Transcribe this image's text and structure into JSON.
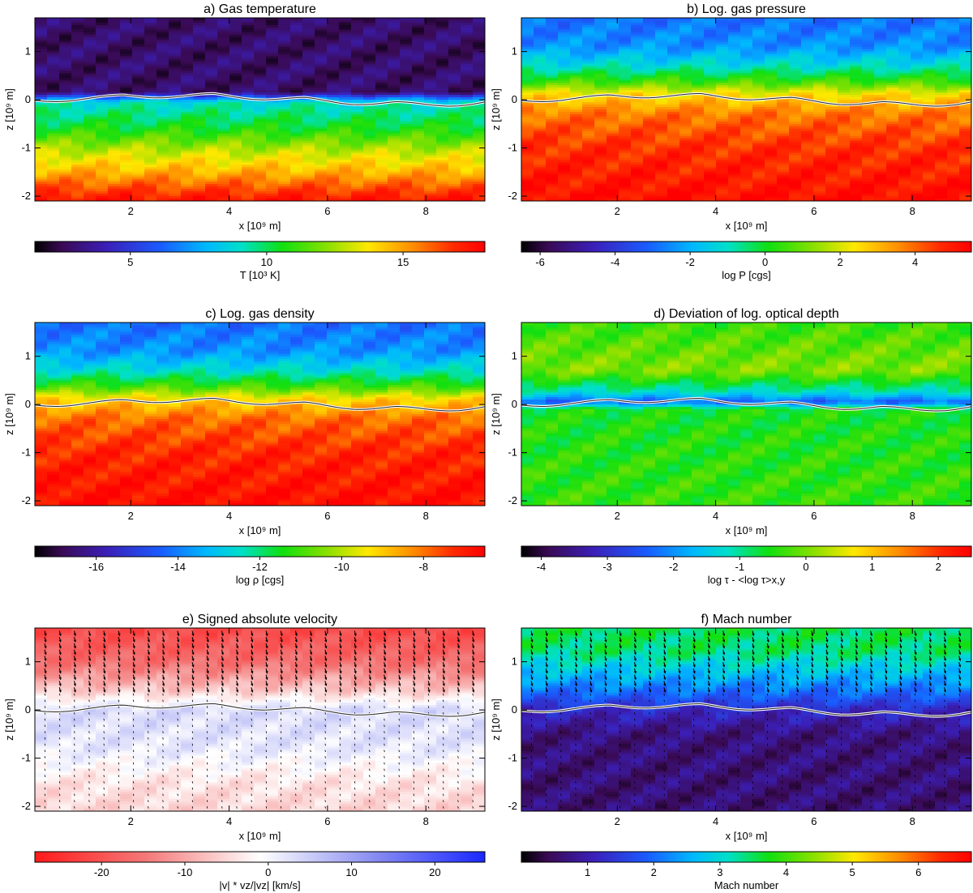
{
  "chart_data": [
    {
      "type": "heatmap",
      "title": "a) Gas temperature",
      "xlabel": "x [10⁹ m]",
      "ylabel": "z [10⁹ m]",
      "xlim": [
        0.05,
        9.2
      ],
      "ylim": [
        -2.1,
        1.7
      ],
      "xticks": [
        "2",
        "4",
        "6",
        "8"
      ],
      "xtick_values": [
        2,
        4,
        6,
        8
      ],
      "yticks": [
        "1",
        "0",
        "-1",
        "-2"
      ],
      "ytick_values": [
        1,
        0,
        -1,
        -2
      ],
      "colorbar": {
        "label": "T [10³ K]",
        "range": [
          1.5,
          18
        ],
        "ticks": [
          "5",
          "10",
          "15"
        ],
        "tick_values": [
          5,
          10,
          15
        ],
        "colormap": "rainbow-dark"
      },
      "field": {
        "kind": "layered",
        "surface_value": 0.0,
        "layers": [
          {
            "z": 1.7,
            "value": 0.08
          },
          {
            "z": 0.15,
            "value": 0.08
          },
          {
            "z": 0.05,
            "value": 0.28
          },
          {
            "z": -0.05,
            "value": 0.45
          },
          {
            "z": -0.6,
            "value": 0.55
          },
          {
            "z": -1.1,
            "value": 0.7
          },
          {
            "z": -1.5,
            "value": 0.8
          },
          {
            "z": -1.9,
            "value": 0.92
          },
          {
            "z": -2.1,
            "value": 0.97
          }
        ]
      },
      "tau_contour": true,
      "vectors": false
    },
    {
      "type": "heatmap",
      "title": "b) Log. gas pressure",
      "xlabel": "x [10⁹ m]",
      "ylabel": "z [10⁹ m]",
      "xlim": [
        0.05,
        9.2
      ],
      "ylim": [
        -2.1,
        1.7
      ],
      "xticks": [
        "2",
        "4",
        "6",
        "8"
      ],
      "xtick_values": [
        2,
        4,
        6,
        8
      ],
      "yticks": [
        "1",
        "0",
        "-1",
        "-2"
      ],
      "ytick_values": [
        1,
        0,
        -1,
        -2
      ],
      "colorbar": {
        "label": "log P [cgs]",
        "range": [
          -6.5,
          5.5
        ],
        "ticks": [
          "-6",
          "-4",
          "-2",
          "0",
          "2",
          "4"
        ],
        "tick_values": [
          -6,
          -4,
          -2,
          0,
          2,
          4
        ],
        "colormap": "rainbow-dark"
      },
      "field": {
        "kind": "layered",
        "layers": [
          {
            "z": 1.7,
            "value": 0.3
          },
          {
            "z": 1.1,
            "value": 0.34
          },
          {
            "z": 0.7,
            "value": 0.45
          },
          {
            "z": 0.35,
            "value": 0.6
          },
          {
            "z": 0.1,
            "value": 0.75
          },
          {
            "z": -0.3,
            "value": 0.86
          },
          {
            "z": -1.0,
            "value": 0.93
          },
          {
            "z": -2.1,
            "value": 0.98
          }
        ]
      },
      "tau_contour": true,
      "vectors": false
    },
    {
      "type": "heatmap",
      "title": "c) Log. gas density",
      "xlabel": "x [10⁹ m]",
      "ylabel": "z [10⁹ m]",
      "xlim": [
        0.05,
        9.2
      ],
      "ylim": [
        -2.1,
        1.7
      ],
      "xticks": [
        "2",
        "4",
        "6",
        "8"
      ],
      "xtick_values": [
        2,
        4,
        6,
        8
      ],
      "yticks": [
        "1",
        "0",
        "-1",
        "-2"
      ],
      "ytick_values": [
        1,
        0,
        -1,
        -2
      ],
      "colorbar": {
        "label": "log ρ [cgs]",
        "range": [
          -17.5,
          -6.5
        ],
        "ticks": [
          "-16",
          "-14",
          "-12",
          "-10",
          "-8"
        ],
        "tick_values": [
          -16,
          -14,
          -12,
          -10,
          -8
        ],
        "colormap": "rainbow-dark"
      },
      "field": {
        "kind": "layered",
        "layers": [
          {
            "z": 1.7,
            "value": 0.3
          },
          {
            "z": 1.1,
            "value": 0.34
          },
          {
            "z": 0.7,
            "value": 0.45
          },
          {
            "z": 0.35,
            "value": 0.6
          },
          {
            "z": 0.1,
            "value": 0.76
          },
          {
            "z": -0.3,
            "value": 0.87
          },
          {
            "z": -1.0,
            "value": 0.94
          },
          {
            "z": -2.1,
            "value": 0.98
          }
        ]
      },
      "tau_contour": true,
      "vectors": false
    },
    {
      "type": "heatmap",
      "title": "d) Deviation of log. optical depth",
      "xlabel": "x [10⁹ m]",
      "ylabel": "z [10⁹ m]",
      "xlim": [
        0.05,
        9.2
      ],
      "ylim": [
        -2.1,
        1.7
      ],
      "xticks": [
        "2",
        "4",
        "6",
        "8"
      ],
      "xtick_values": [
        2,
        4,
        6,
        8
      ],
      "yticks": [
        "1",
        "0",
        "-1",
        "-2"
      ],
      "ytick_values": [
        1,
        0,
        -1,
        -2
      ],
      "colorbar": {
        "label": "log τ - <log τ>x,y",
        "range": [
          -4.3,
          2.5
        ],
        "ticks": [
          "-4",
          "-3",
          "-2",
          "-1",
          "0",
          "1",
          "2"
        ],
        "tick_values": [
          -4,
          -3,
          -2,
          -1,
          0,
          1,
          2
        ],
        "colormap": "rainbow-dark"
      },
      "field": {
        "kind": "layered",
        "layers": [
          {
            "z": 1.7,
            "value": 0.58
          },
          {
            "z": 0.7,
            "value": 0.64
          },
          {
            "z": 0.25,
            "value": 0.45
          },
          {
            "z": 0.05,
            "value": 0.28
          },
          {
            "z": -0.1,
            "value": 0.55
          },
          {
            "z": -2.1,
            "value": 0.58
          }
        ]
      },
      "tau_contour": true,
      "vectors": false
    },
    {
      "type": "heatmap",
      "title": "e) Signed absolute velocity",
      "xlabel": "x [10⁹ m]",
      "ylabel": "z [10⁹ m]",
      "xlim": [
        0.05,
        9.2
      ],
      "ylim": [
        -2.1,
        1.7
      ],
      "xticks": [
        "2",
        "4",
        "6",
        "8"
      ],
      "xtick_values": [
        2,
        4,
        6,
        8
      ],
      "yticks": [
        "1",
        "0",
        "-1",
        "-2"
      ],
      "ytick_values": [
        1,
        0,
        -1,
        -2
      ],
      "colorbar": {
        "label": "|v| * vz/|vz| [km/s]",
        "range": [
          -28,
          26
        ],
        "ticks": [
          "-20",
          "-10",
          "0",
          "10",
          "20"
        ],
        "tick_values": [
          -20,
          -10,
          0,
          10,
          20
        ],
        "colormap": "red-white-blue"
      },
      "field": {
        "kind": "layered",
        "layers": [
          {
            "z": 1.7,
            "value": 0.12
          },
          {
            "z": 1.0,
            "value": 0.22
          },
          {
            "z": 0.4,
            "value": 0.4
          },
          {
            "z": 0.0,
            "value": 0.58
          },
          {
            "z": -0.8,
            "value": 0.55
          },
          {
            "z": -1.5,
            "value": 0.45
          },
          {
            "z": -2.1,
            "value": 0.42
          }
        ]
      },
      "tau_contour": true,
      "vectors": true
    },
    {
      "type": "heatmap",
      "title": "f) Mach number",
      "xlabel": "x [10⁹ m]",
      "ylabel": "z [10⁹ m]",
      "xlim": [
        0.05,
        9.2
      ],
      "ylim": [
        -2.1,
        1.7
      ],
      "xticks": [
        "2",
        "4",
        "6",
        "8"
      ],
      "xtick_values": [
        2,
        4,
        6,
        8
      ],
      "yticks": [
        "1",
        "0",
        "-1",
        "-2"
      ],
      "ytick_values": [
        1,
        0,
        -1,
        -2
      ],
      "colorbar": {
        "label": "Mach number",
        "range": [
          0,
          6.8
        ],
        "ticks": [
          "1",
          "2",
          "3",
          "4",
          "5",
          "6"
        ],
        "tick_values": [
          1,
          2,
          3,
          4,
          5,
          6
        ],
        "colormap": "rainbow-dark"
      },
      "field": {
        "kind": "layered",
        "layers": [
          {
            "z": 1.7,
            "value": 0.52
          },
          {
            "z": 1.2,
            "value": 0.5
          },
          {
            "z": 0.7,
            "value": 0.38
          },
          {
            "z": 0.3,
            "value": 0.28
          },
          {
            "z": 0.0,
            "value": 0.18
          },
          {
            "z": -0.5,
            "value": 0.1
          },
          {
            "z": -2.1,
            "value": 0.09
          }
        ]
      },
      "tau_contour": true,
      "vectors": true
    }
  ]
}
